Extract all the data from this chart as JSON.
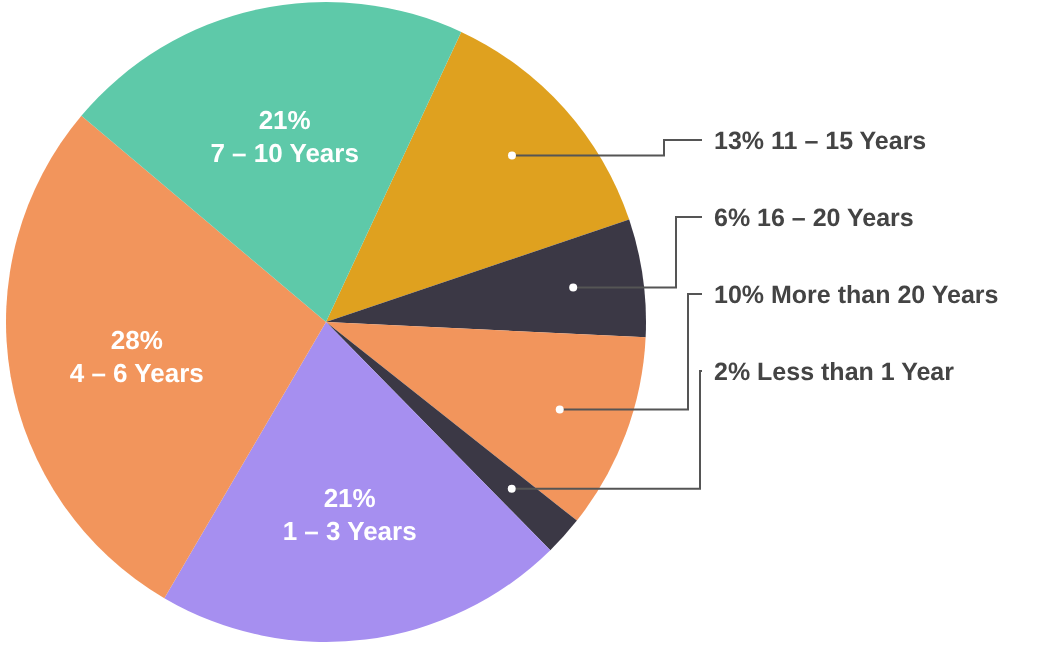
{
  "chart_data": {
    "type": "pie",
    "categories": [
      "11 – 15 Years",
      "16 – 20 Years",
      "More than 20 Years",
      "Less than 1 Year",
      "1 – 3 Years",
      "4 – 6 Years",
      "7 – 10 Years"
    ],
    "values": [
      13,
      6,
      10,
      2,
      21,
      28,
      21
    ],
    "value_labels": [
      "13%",
      "6%",
      "10%",
      "2%",
      "21%",
      "28%",
      "21%"
    ],
    "colors": [
      "#dfa11f",
      "#3b3845",
      "#f2955c",
      "#3b3845",
      "#a68ff0",
      "#f2955c",
      "#5ec9a9"
    ]
  }
}
